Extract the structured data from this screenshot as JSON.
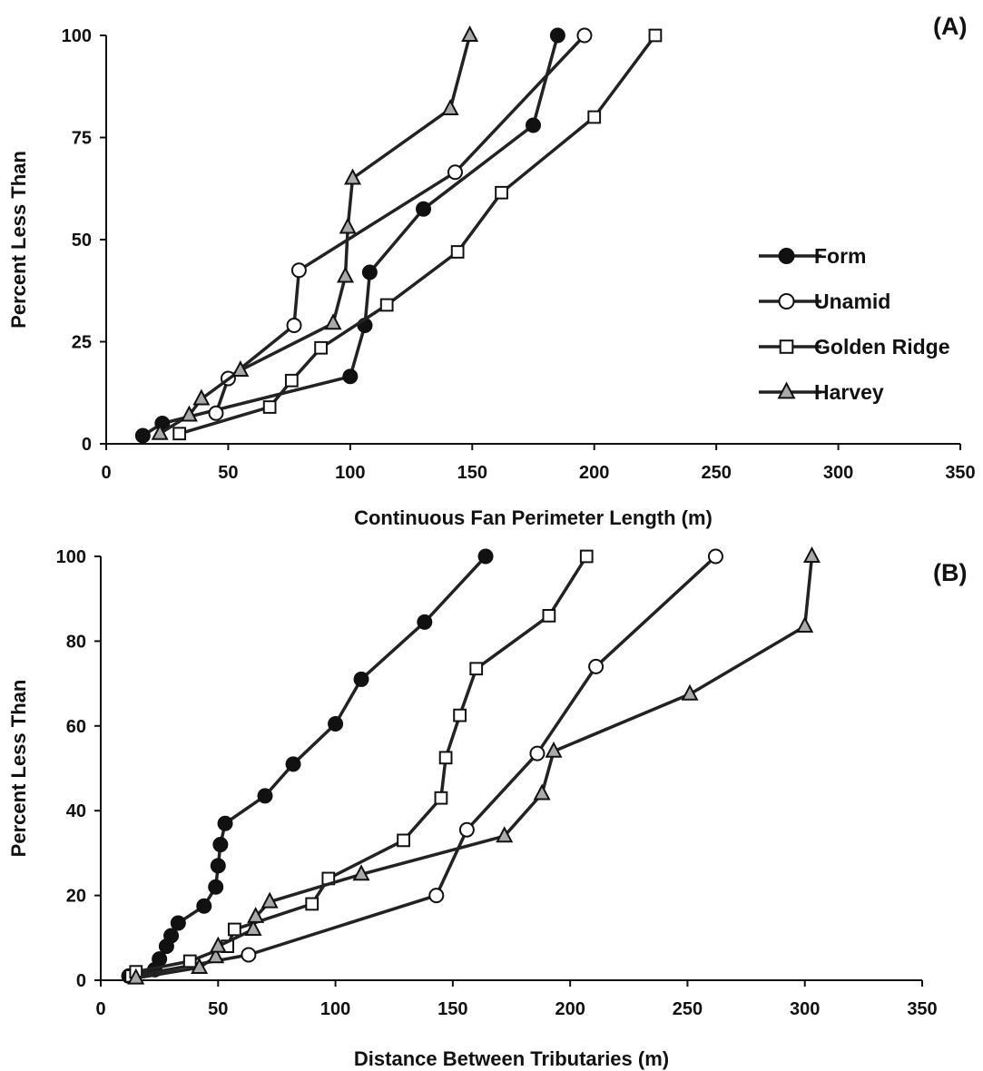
{
  "chart_data": [
    {
      "type": "line",
      "panel_label": "(A)",
      "xlabel": "Continuous Fan Perimeter Length (m)",
      "ylabel": "Percent Less Than",
      "xlim": [
        0,
        350
      ],
      "ylim": [
        0,
        100
      ],
      "x_ticks": [
        "0",
        "50",
        "100",
        "150",
        "200",
        "250",
        "300",
        "350"
      ],
      "y_ticks": [
        "0",
        "25",
        "50",
        "75",
        "100"
      ],
      "grid": false,
      "legend_position": "right",
      "series": [
        {
          "name": "Form",
          "marker": "filled-circle",
          "fill": "#111111",
          "points": [
            [
              15,
              2
            ],
            [
              23,
              5
            ],
            [
              100,
              16.5
            ],
            [
              106,
              29
            ],
            [
              108,
              42
            ],
            [
              130,
              57.5
            ],
            [
              175,
              78
            ],
            [
              185,
              100
            ]
          ]
        },
        {
          "name": "Unamid",
          "marker": "open-circle",
          "fill": "#ffffff",
          "points": [
            [
              45,
              7.5
            ],
            [
              50,
              16
            ],
            [
              77,
              29
            ],
            [
              79,
              42.5
            ],
            [
              143,
              66.5
            ],
            [
              196,
              100
            ]
          ]
        },
        {
          "name": "Golden Ridge",
          "marker": "open-square",
          "fill": "#ffffff",
          "points": [
            [
              30,
              2.5
            ],
            [
              67,
              9
            ],
            [
              76,
              15.5
            ],
            [
              88,
              23.5
            ],
            [
              115,
              34
            ],
            [
              144,
              47
            ],
            [
              162,
              61.5
            ],
            [
              200,
              80
            ],
            [
              225,
              100
            ]
          ]
        },
        {
          "name": "Harvey",
          "marker": "gray-triangle",
          "fill": "#a9a9a9",
          "points": [
            [
              22,
              2.5
            ],
            [
              34,
              7
            ],
            [
              39,
              11
            ],
            [
              55,
              18
            ],
            [
              93,
              29.5
            ],
            [
              98,
              41
            ],
            [
              99,
              53
            ],
            [
              101,
              65
            ],
            [
              141,
              82
            ],
            [
              149,
              100
            ]
          ]
        }
      ]
    },
    {
      "type": "line",
      "panel_label": "(B)",
      "xlabel": "Distance Between Tributaries (m)",
      "ylabel": "Percent Less Than",
      "xlim": [
        0,
        350
      ],
      "ylim": [
        0,
        100
      ],
      "x_ticks": [
        "0",
        "50",
        "100",
        "150",
        "200",
        "250",
        "300",
        "350"
      ],
      "y_ticks": [
        "0",
        "20",
        "40",
        "60",
        "80",
        "100"
      ],
      "grid": false,
      "series": [
        {
          "name": "Form",
          "marker": "filled-circle",
          "fill": "#111111",
          "points": [
            [
              12,
              1
            ],
            [
              23,
              2.5
            ],
            [
              25,
              5
            ],
            [
              28,
              8
            ],
            [
              30,
              10.5
            ],
            [
              33,
              13.5
            ],
            [
              44,
              17.5
            ],
            [
              49,
              22
            ],
            [
              50,
              27
            ],
            [
              51,
              32
            ],
            [
              53,
              37
            ],
            [
              70,
              43.5
            ],
            [
              82,
              51
            ],
            [
              100,
              60.5
            ],
            [
              111,
              71
            ],
            [
              138,
              84.5
            ],
            [
              164,
              100
            ]
          ]
        },
        {
          "name": "Unamid",
          "marker": "open-circle",
          "fill": "#ffffff",
          "points": [
            [
              14,
              1
            ],
            [
              63,
              6
            ],
            [
              143,
              20
            ],
            [
              156,
              35.5
            ],
            [
              186,
              53.5
            ],
            [
              211,
              74
            ],
            [
              262,
              100
            ]
          ]
        },
        {
          "name": "Golden Ridge",
          "marker": "open-square",
          "fill": "#ffffff",
          "points": [
            [
              13,
              1
            ],
            [
              15,
              2
            ],
            [
              38,
              4.5
            ],
            [
              54,
              8
            ],
            [
              57,
              12
            ],
            [
              90,
              18
            ],
            [
              97,
              24
            ],
            [
              129,
              33
            ],
            [
              145,
              43
            ],
            [
              147,
              52.5
            ],
            [
              153,
              62.5
            ],
            [
              160,
              73.5
            ],
            [
              191,
              86
            ],
            [
              207,
              100
            ]
          ]
        },
        {
          "name": "Harvey",
          "marker": "gray-triangle",
          "fill": "#a9a9a9",
          "points": [
            [
              15,
              0.5
            ],
            [
              42,
              3
            ],
            [
              49,
              5.5
            ],
            [
              50,
              8
            ],
            [
              65,
              12
            ],
            [
              66,
              15
            ],
            [
              72,
              18.5
            ],
            [
              111,
              25
            ],
            [
              172,
              34
            ],
            [
              188,
              44
            ],
            [
              193,
              54
            ],
            [
              251,
              67.5
            ],
            [
              300,
              83.5
            ],
            [
              303,
              100
            ]
          ]
        }
      ]
    }
  ]
}
